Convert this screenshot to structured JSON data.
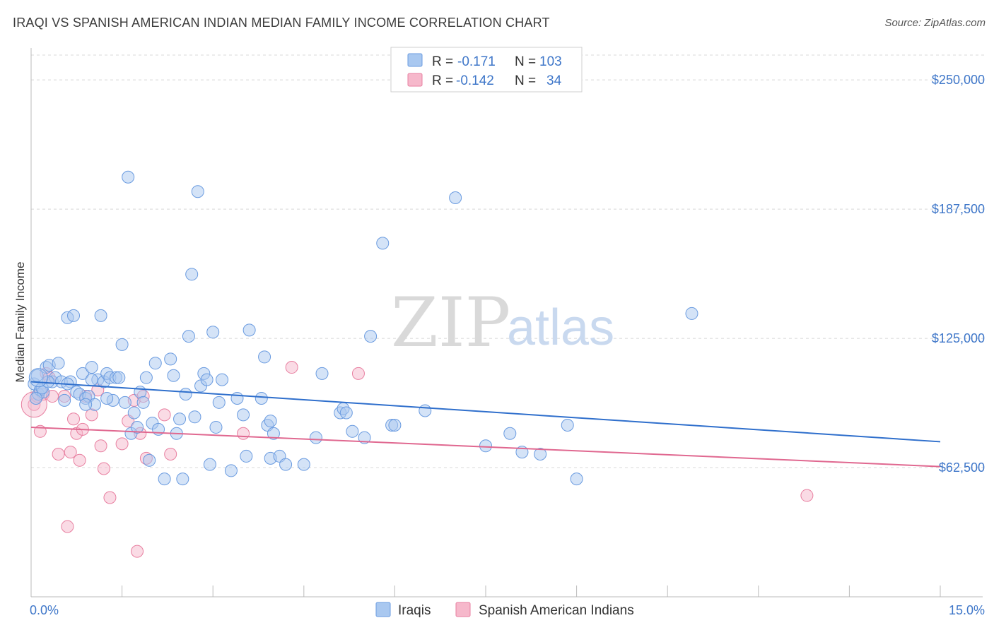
{
  "header": {
    "title": "IRAQI VS SPANISH AMERICAN INDIAN MEDIAN FAMILY INCOME CORRELATION CHART",
    "source": "Source: ZipAtlas.com"
  },
  "colors": {
    "blue_fill": "#a9c8f0",
    "blue_stroke": "#6a9be0",
    "blue_line": "#2f6fcc",
    "pink_fill": "#f6b8cb",
    "pink_stroke": "#e87fa0",
    "pink_line": "#e06890",
    "tick_text": "#3f77c9",
    "grid": "#d8d8d8"
  },
  "legend": {
    "r_label": "R =",
    "n_label": "N =",
    "rows": [
      {
        "r": "-0.171",
        "n": "103"
      },
      {
        "r": "-0.142",
        "n": "34"
      }
    ]
  },
  "watermark": {
    "zip": "ZIP",
    "atlas": "atlas"
  },
  "chart_data": {
    "type": "scatter",
    "xlabel": "",
    "ylabel": "Median Family Income",
    "xlim": [
      0,
      15
    ],
    "ylim": [
      0,
      262000
    ],
    "x_tick_labels": [
      "0.0%",
      "15.0%"
    ],
    "y_ticks": [
      62500,
      125000,
      187500,
      250000
    ],
    "y_tick_labels": [
      "$62,500",
      "$125,000",
      "$187,500",
      "$250,000"
    ],
    "grid": "horizontal dashed",
    "legend_position": "top-center",
    "series": [
      {
        "name": "Iraqis",
        "trend": [
          [
            0,
            104000
          ],
          [
            15,
            75000
          ]
        ],
        "points": [
          [
            0.05,
            103000
          ],
          [
            0.1,
            107000
          ],
          [
            0.12,
            98000
          ],
          [
            0.15,
            100000
          ],
          [
            0.2,
            99000
          ],
          [
            0.25,
            111000
          ],
          [
            0.3,
            112000
          ],
          [
            0.35,
            104000
          ],
          [
            0.4,
            106000
          ],
          [
            0.45,
            113000
          ],
          [
            0.5,
            104000
          ],
          [
            0.55,
            95000
          ],
          [
            0.6,
            135000
          ],
          [
            0.65,
            104000
          ],
          [
            0.7,
            136000
          ],
          [
            0.75,
            99000
          ],
          [
            0.8,
            98000
          ],
          [
            0.85,
            108000
          ],
          [
            0.9,
            96000
          ],
          [
            0.95,
            97000
          ],
          [
            1.0,
            111000
          ],
          [
            1.05,
            93000
          ],
          [
            1.1,
            105000
          ],
          [
            1.15,
            136000
          ],
          [
            1.2,
            104000
          ],
          [
            1.25,
            108000
          ],
          [
            1.3,
            106000
          ],
          [
            1.35,
            95000
          ],
          [
            1.4,
            106000
          ],
          [
            1.5,
            122000
          ],
          [
            1.55,
            94000
          ],
          [
            1.6,
            203000
          ],
          [
            1.65,
            79000
          ],
          [
            1.7,
            89000
          ],
          [
            1.75,
            82000
          ],
          [
            1.8,
            99000
          ],
          [
            1.85,
            94000
          ],
          [
            1.9,
            106000
          ],
          [
            1.95,
            66000
          ],
          [
            2.0,
            84000
          ],
          [
            2.05,
            113000
          ],
          [
            2.1,
            81000
          ],
          [
            2.2,
            57000
          ],
          [
            2.3,
            115000
          ],
          [
            2.4,
            79000
          ],
          [
            2.45,
            86000
          ],
          [
            2.5,
            57000
          ],
          [
            2.55,
            98000
          ],
          [
            2.6,
            126000
          ],
          [
            2.65,
            156000
          ],
          [
            2.7,
            87000
          ],
          [
            2.75,
            196000
          ],
          [
            2.8,
            102000
          ],
          [
            2.85,
            108000
          ],
          [
            2.9,
            105000
          ],
          [
            2.95,
            64000
          ],
          [
            3.0,
            128000
          ],
          [
            3.05,
            82000
          ],
          [
            3.1,
            94000
          ],
          [
            3.15,
            105000
          ],
          [
            3.3,
            61000
          ],
          [
            3.4,
            96000
          ],
          [
            3.5,
            88000
          ],
          [
            3.55,
            68000
          ],
          [
            3.6,
            129000
          ],
          [
            3.8,
            96000
          ],
          [
            3.85,
            116000
          ],
          [
            3.9,
            83000
          ],
          [
            3.95,
            85000
          ],
          [
            4.0,
            79000
          ],
          [
            3.95,
            67000
          ],
          [
            4.1,
            68000
          ],
          [
            4.2,
            64000
          ],
          [
            4.5,
            64000
          ],
          [
            4.7,
            77000
          ],
          [
            4.8,
            108000
          ],
          [
            5.1,
            89000
          ],
          [
            5.15,
            91000
          ],
          [
            5.2,
            89000
          ],
          [
            5.3,
            80000
          ],
          [
            5.5,
            77000
          ],
          [
            5.6,
            126000
          ],
          [
            5.8,
            171000
          ],
          [
            5.95,
            83000
          ],
          [
            6.0,
            83000
          ],
          [
            6.5,
            90000
          ],
          [
            7.0,
            193000
          ],
          [
            7.5,
            73000
          ],
          [
            7.9,
            79000
          ],
          [
            8.1,
            70000
          ],
          [
            8.4,
            69000
          ],
          [
            8.85,
            83000
          ],
          [
            9.0,
            57000
          ],
          [
            10.9,
            137000
          ],
          [
            0.08,
            96000
          ],
          [
            0.18,
            101000
          ],
          [
            0.28,
            104000
          ],
          [
            0.6,
            103000
          ],
          [
            1.0,
            105000
          ],
          [
            1.45,
            106000
          ],
          [
            0.9,
            93000
          ],
          [
            1.25,
            96000
          ],
          [
            2.35,
            107000
          ]
        ]
      },
      {
        "name": "Spanish American Indians",
        "trend": [
          [
            0,
            82000
          ],
          [
            15,
            63000
          ]
        ],
        "points": [
          [
            0.05,
            93000
          ],
          [
            0.1,
            97000
          ],
          [
            0.15,
            80000
          ],
          [
            0.2,
            98000
          ],
          [
            0.25,
            108000
          ],
          [
            0.3,
            106000
          ],
          [
            0.35,
            97000
          ],
          [
            0.45,
            69000
          ],
          [
            0.55,
            97000
          ],
          [
            0.6,
            34000
          ],
          [
            0.65,
            70000
          ],
          [
            0.7,
            86000
          ],
          [
            0.75,
            79000
          ],
          [
            0.8,
            66000
          ],
          [
            0.85,
            81000
          ],
          [
            0.9,
            97000
          ],
          [
            1.0,
            88000
          ],
          [
            1.1,
            100000
          ],
          [
            1.15,
            73000
          ],
          [
            1.2,
            62000
          ],
          [
            1.3,
            48000
          ],
          [
            1.5,
            74000
          ],
          [
            1.6,
            85000
          ],
          [
            1.7,
            95000
          ],
          [
            1.75,
            22000
          ],
          [
            1.8,
            79000
          ],
          [
            1.85,
            97000
          ],
          [
            1.9,
            67000
          ],
          [
            2.2,
            88000
          ],
          [
            2.3,
            69000
          ],
          [
            3.5,
            79000
          ],
          [
            4.3,
            111000
          ],
          [
            5.4,
            108000
          ],
          [
            12.8,
            49000
          ]
        ]
      }
    ]
  },
  "bottom_legend": {
    "items": [
      {
        "label": "Iraqis"
      },
      {
        "label": "Spanish American Indians"
      }
    ]
  }
}
